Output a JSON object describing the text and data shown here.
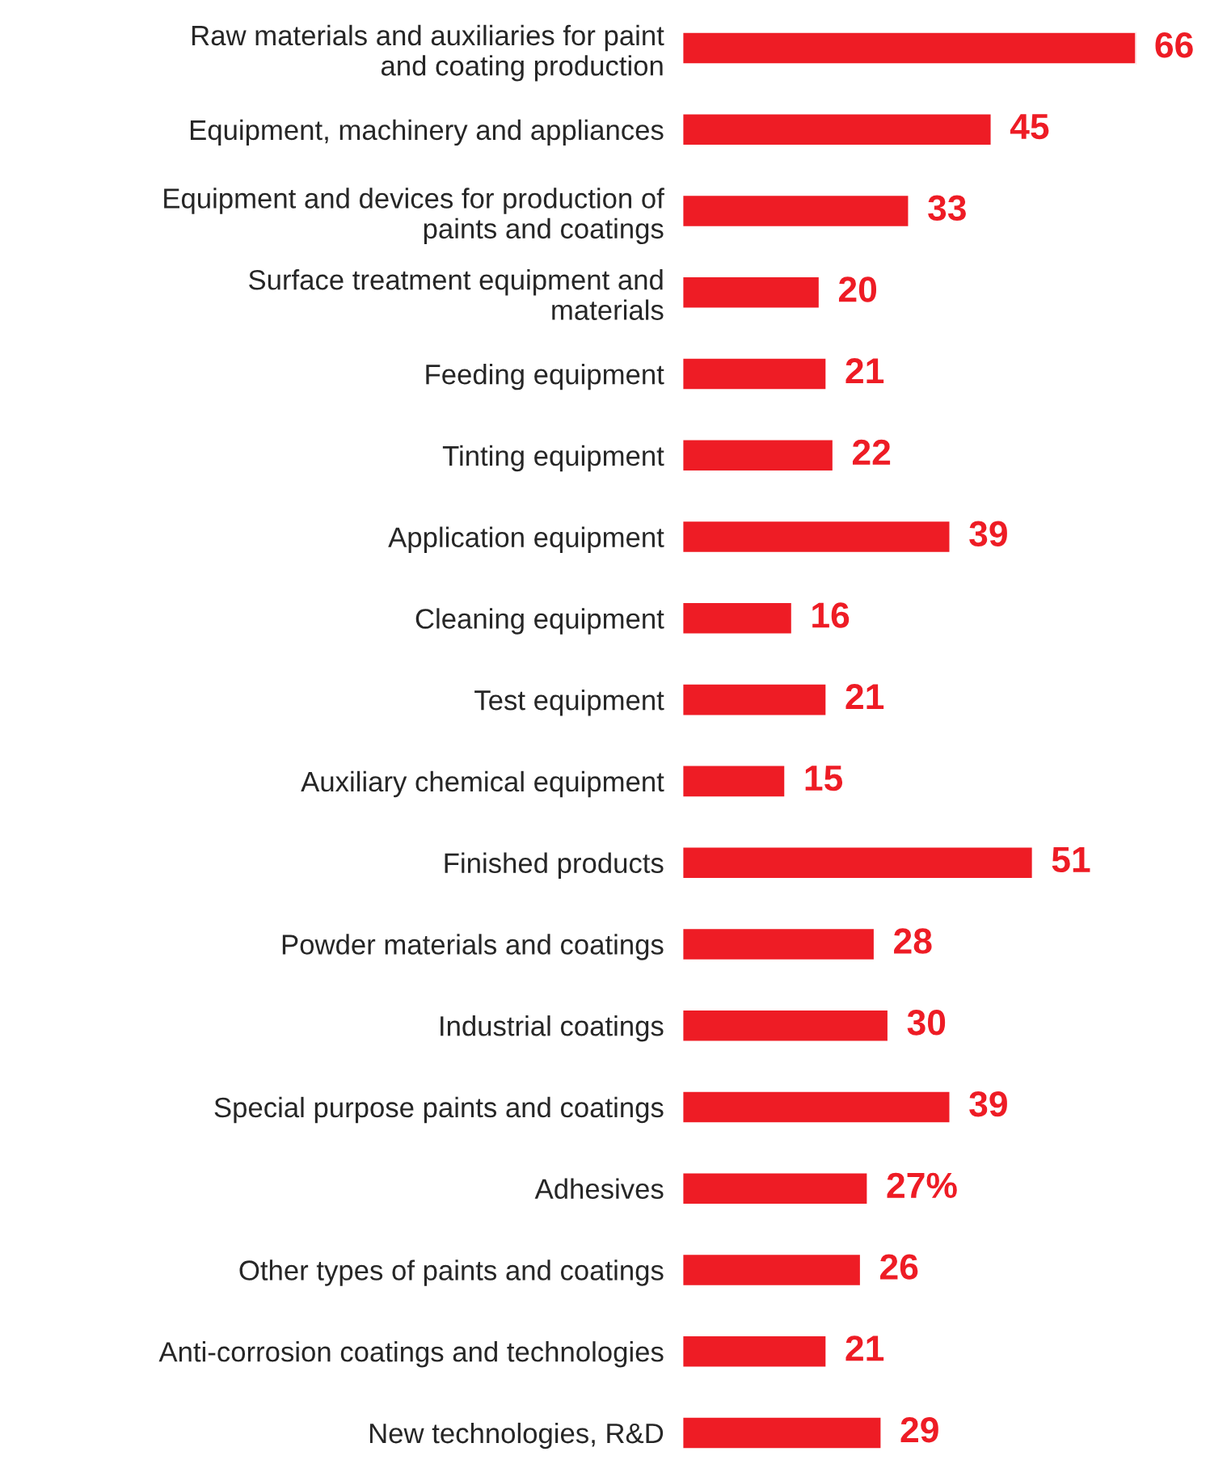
{
  "chart_data": {
    "type": "bar",
    "orientation": "horizontal",
    "color": "#ee1c25",
    "categories": [
      "Raw materials and auxiliaries for paint\nand coating production",
      "Equipment, machinery and appliances",
      "Equipment and devices for production of\npaints and coatings",
      "Surface treatment equipment and\nmaterials",
      "Feeding equipment",
      "Tinting equipment",
      "Application equipment",
      "Cleaning equipment",
      "Test equipment",
      "Auxiliary chemical equipment",
      "Finished products",
      "Powder materials and coatings",
      "Industrial coatings",
      "Special purpose paints and coatings",
      "Adhesives",
      "Other types of paints and coatings",
      "Anti-corrosion coatings and technologies",
      "New technologies, R&D"
    ],
    "values": [
      66,
      45,
      33,
      20,
      21,
      22,
      39,
      16,
      21,
      15,
      51,
      28,
      30,
      39,
      27,
      26,
      21,
      29
    ],
    "value_labels": [
      "66",
      "45",
      "33",
      "20",
      "21",
      "22",
      "39",
      "16",
      "21",
      "15",
      "51",
      "28",
      "30",
      "39",
      "27%",
      "26",
      "21",
      "29"
    ],
    "grid": false,
    "legend": false
  }
}
